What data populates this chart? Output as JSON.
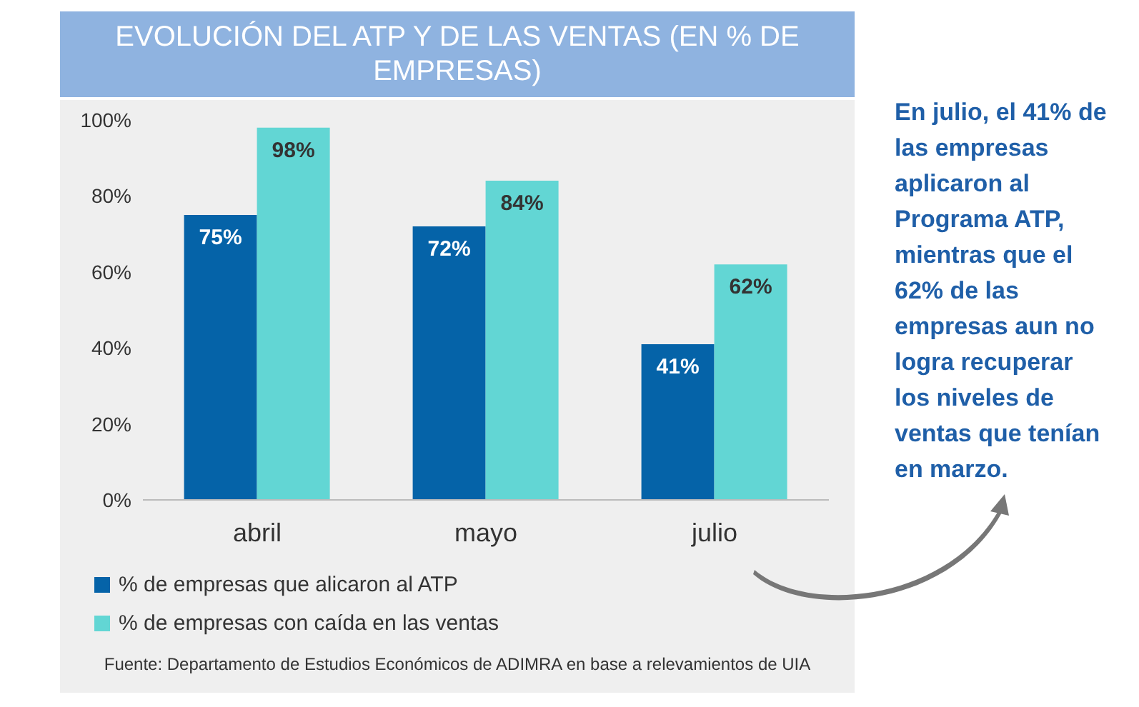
{
  "chart_data": {
    "type": "bar",
    "title": "EVOLUCIÓN DEL ATP Y DE LAS VENTAS (EN % DE EMPRESAS)",
    "categories": [
      "abril",
      "mayo",
      "julio"
    ],
    "series": [
      {
        "name": "% de empresas que alicaron al ATP",
        "color": "#0563a8",
        "values": [
          75,
          72,
          41
        ],
        "value_labels": [
          "75%",
          "72%",
          "41%"
        ]
      },
      {
        "name": "% de empresas con caída en las ventas",
        "color": "#62d6d4",
        "values": [
          98,
          84,
          62
        ],
        "value_labels": [
          "98%",
          "84%",
          "62%"
        ]
      }
    ],
    "ylim": [
      0,
      100
    ],
    "yticks": [
      {
        "value": 0,
        "label": "0%"
      },
      {
        "value": 20,
        "label": "20%"
      },
      {
        "value": 40,
        "label": "40%"
      },
      {
        "value": 60,
        "label": "60%"
      },
      {
        "value": 80,
        "label": "80%"
      },
      {
        "value": 100,
        "label": "100%"
      }
    ],
    "grid": false,
    "legend": "bottom",
    "annotations": [
      "En julio, el 41% de las empresas aplicaron al Programa ATP, mientras que el 62% de las empresas aun no logra recuperar los niveles de ventas que tenían en marzo.",
      "Fuente: Departamento de Estudios Económicos de ADIMRA en base a relevamientos de UIA"
    ]
  }
}
